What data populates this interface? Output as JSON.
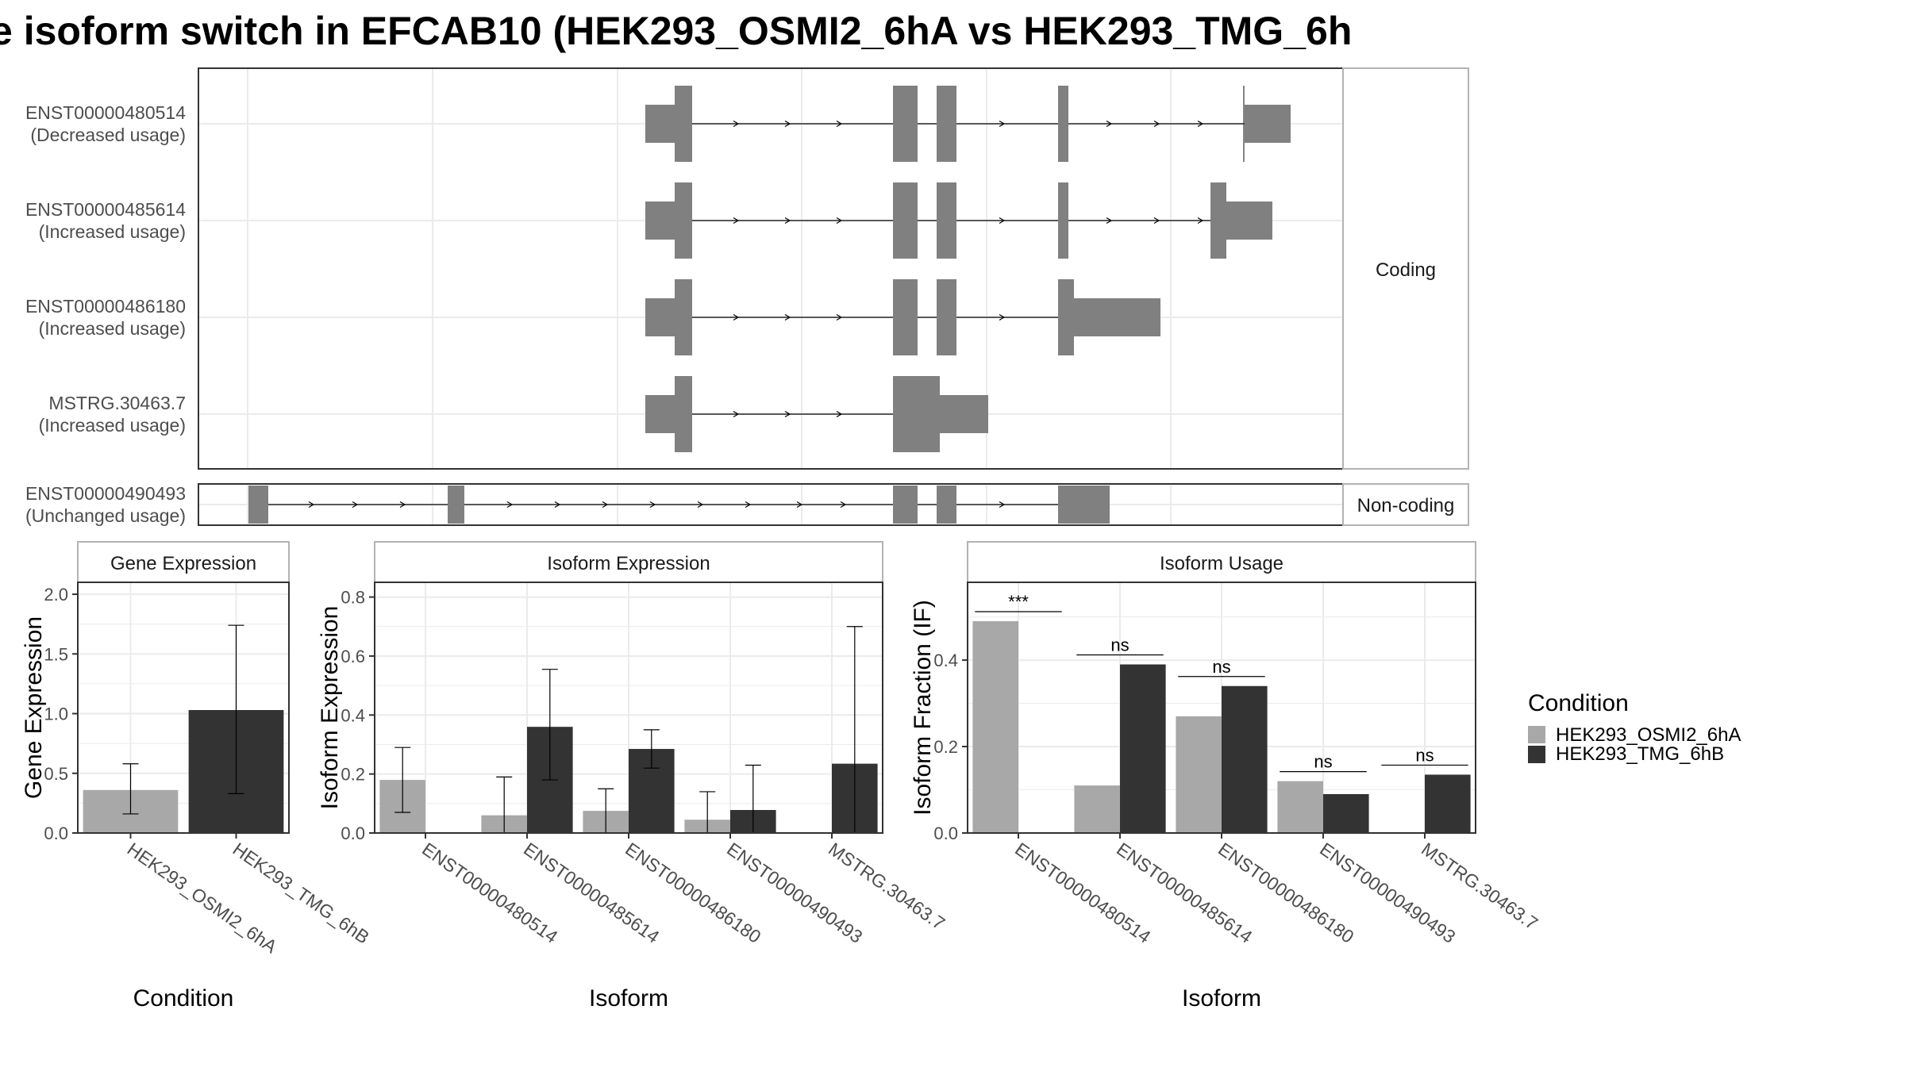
{
  "title": "e isoform switch in EFCAB10 (HEK293_OSMI2_6hA vs HEK293_TMG_6h",
  "colors": {
    "condA": "#a8a8a8",
    "condB": "#333333",
    "exon": "#808080",
    "panel_border": "#333333",
    "strip_border": "#b3b3b3",
    "grid": "#ebebeb",
    "axis_text": "#4d4d4d"
  },
  "conditions": [
    "HEK293_OSMI2_6hA",
    "HEK293_TMG_6hB"
  ],
  "legend": {
    "title": "Condition",
    "items": [
      "HEK293_OSMI2_6hA",
      "HEK293_TMG_6hB"
    ]
  },
  "structure": {
    "facets": [
      "Coding",
      "Non-coding"
    ],
    "transcripts": [
      {
        "id": "ENST00000480514",
        "status": "(Decreased usage)",
        "facet": "Coding"
      },
      {
        "id": "ENST00000485614",
        "status": "(Increased usage)",
        "facet": "Coding"
      },
      {
        "id": "ENST00000486180",
        "status": "(Increased usage)",
        "facet": "Coding"
      },
      {
        "id": "MSTRG.30463.7",
        "status": "(Increased usage)",
        "facet": "Coding"
      },
      {
        "id": "ENST00000490493",
        "status": "(Unchanged usage)",
        "facet": "Non-coding"
      }
    ]
  },
  "chart_data": [
    {
      "type": "bar",
      "strip": "Gene Expression",
      "xlabel": "Condition",
      "ylabel": "Gene Expression",
      "ylim": [
        0,
        2.1
      ],
      "yticks": [
        "0.0",
        "0.5",
        "1.0",
        "1.5",
        "2.0"
      ],
      "yticks_values": [
        0,
        0.5,
        1.0,
        1.5,
        2.0
      ],
      "categories": [
        "HEK293_OSMI2_6hA",
        "HEK293_TMG_6hB"
      ],
      "values": [
        0.36,
        1.03
      ],
      "errors": [
        [
          0.16,
          0.58
        ],
        [
          0.33,
          1.74
        ]
      ]
    },
    {
      "type": "bar",
      "strip": "Isoform Expression",
      "xlabel": "Isoform",
      "ylabel": "Isoform Expression",
      "ylim": [
        0,
        0.85
      ],
      "yticks": [
        "0.0",
        "0.2",
        "0.4",
        "0.6",
        "0.8"
      ],
      "yticks_values": [
        0,
        0.2,
        0.4,
        0.6,
        0.8
      ],
      "categories": [
        "ENST00000480514",
        "ENST00000485614",
        "ENST00000486180",
        "ENST00000490493",
        "MSTRG.30463.7"
      ],
      "series": [
        {
          "name": "HEK293_OSMI2_6hA",
          "values": [
            0.18,
            0.06,
            0.075,
            0.045,
            0.0
          ],
          "errors": [
            [
              0.07,
              0.29
            ],
            [
              0.0,
              0.19
            ],
            [
              0.0,
              0.15
            ],
            [
              0.0,
              0.14
            ],
            [
              0.0,
              0.0
            ]
          ]
        },
        {
          "name": "HEK293_TMG_6hB",
          "values": [
            0.0,
            0.36,
            0.285,
            0.078,
            0.235
          ],
          "errors": [
            [
              0.0,
              0.0
            ],
            [
              0.18,
              0.555
            ],
            [
              0.22,
              0.35
            ],
            [
              0.0,
              0.23
            ],
            [
              0.0,
              0.7
            ]
          ]
        }
      ]
    },
    {
      "type": "bar",
      "strip": "Isoform Usage",
      "xlabel": "Isoform",
      "ylabel": "Isoform Fraction (IF)",
      "ylim": [
        0,
        0.58
      ],
      "yticks": [
        "0.0",
        "0.2",
        "0.4"
      ],
      "yticks_values": [
        0,
        0.2,
        0.4
      ],
      "categories": [
        "ENST00000480514",
        "ENST00000485614",
        "ENST00000486180",
        "ENST00000490493",
        "MSTRG.30463.7"
      ],
      "significance": [
        "***",
        "ns",
        "ns",
        "ns",
        "ns"
      ],
      "series": [
        {
          "name": "HEK293_OSMI2_6hA",
          "values": [
            0.49,
            0.11,
            0.27,
            0.12,
            0.0
          ]
        },
        {
          "name": "HEK293_TMG_6hB",
          "values": [
            0.0,
            0.39,
            0.34,
            0.09,
            0.135
          ]
        }
      ]
    }
  ]
}
